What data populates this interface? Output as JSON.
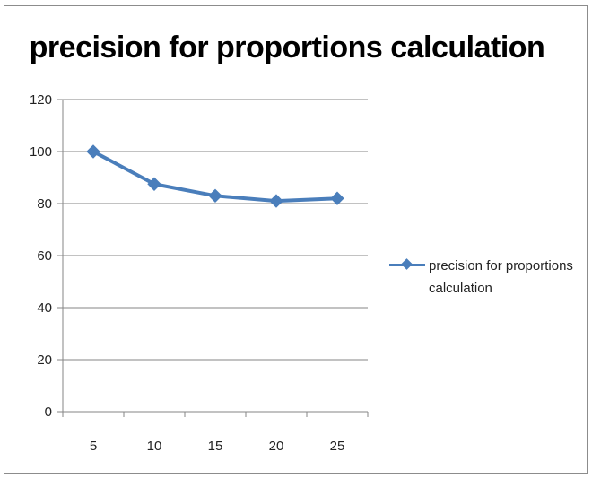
{
  "chart_data": {
    "type": "line",
    "title": "precision for proportions calculation",
    "xlabel": "",
    "ylabel": "",
    "categories": [
      "5",
      "10",
      "15",
      "20",
      "25"
    ],
    "ylim": [
      0,
      120
    ],
    "yticks": [
      "0",
      "20",
      "40",
      "60",
      "80",
      "100",
      "120"
    ],
    "grid": true,
    "legend_position": "right",
    "series": [
      {
        "name": "precision for proportions calculation",
        "values": [
          100,
          87.5,
          83,
          81,
          82
        ],
        "color": "#4a7ebb",
        "marker": "diamond"
      }
    ]
  }
}
